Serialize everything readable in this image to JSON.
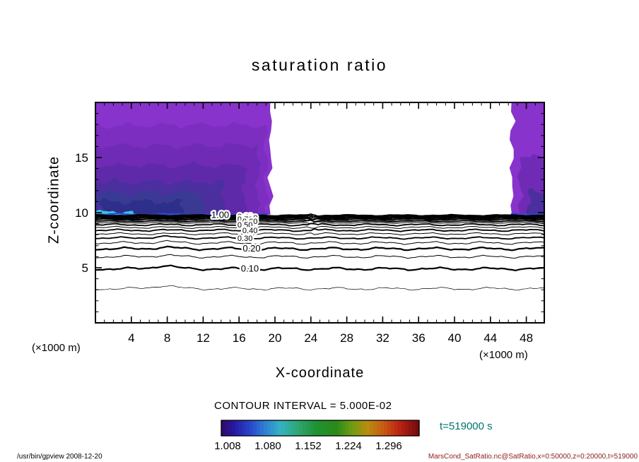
{
  "header": {
    "title": "saturation ratio"
  },
  "axes": {
    "xlabel": "X-coordinate",
    "ylabel": "Z-coordinate",
    "x_unit": "(×1000 m)",
    "z_unit": "(×1000 m)"
  },
  "caption": {
    "contour_interval": "CONTOUR INTERVAL = 5.000E-02",
    "time": "t=519000 s",
    "time_color": "#00736d"
  },
  "footer": {
    "left": "/usr/bin/gpview  2008-12-20",
    "right": "MarsCond_SatRatio.nc@SatRatio,x=0:50000,z=0:20000,t=519000",
    "right_color": "#8b1a1a"
  },
  "chart_data": {
    "type": "contour",
    "title": "saturation ratio",
    "xlabel": "X-coordinate",
    "ylabel": "Z-coordinate",
    "x_unit": "×1000 m",
    "z_unit": "×1000 m",
    "x_range": [
      0,
      50
    ],
    "z_range": [
      0,
      20
    ],
    "x_ticks": [
      4,
      8,
      12,
      16,
      20,
      24,
      28,
      32,
      36,
      40,
      44,
      48
    ],
    "z_ticks": [
      5,
      10,
      15
    ],
    "contour_interval": 0.05,
    "time": "t=519000 s",
    "line_contours": [
      {
        "level": 0.05,
        "z": 3.1,
        "w": 0.7
      },
      {
        "level": 0.1,
        "z": 4.9,
        "w": 2.2
      },
      {
        "level": 0.15,
        "z": 6.0,
        "w": 1.0
      },
      {
        "level": 0.2,
        "z": 6.72,
        "w": 2.2
      },
      {
        "level": 0.25,
        "z": 7.25,
        "w": 1.0
      },
      {
        "level": 0.3,
        "z": 7.7,
        "w": 1.8
      },
      {
        "level": 0.35,
        "z": 8.08,
        "w": 1.0
      },
      {
        "level": 0.4,
        "z": 8.4,
        "w": 1.8
      },
      {
        "level": 0.45,
        "z": 8.66,
        "w": 1.0
      },
      {
        "level": 0.5,
        "z": 8.9,
        "w": 1.8
      },
      {
        "level": 0.55,
        "z": 9.08,
        "w": 1.0
      },
      {
        "level": 0.6,
        "z": 9.22,
        "w": 1.8
      },
      {
        "level": 0.65,
        "z": 9.33,
        "w": 1.0
      },
      {
        "level": 0.7,
        "z": 9.42,
        "w": 1.8
      },
      {
        "level": 0.75,
        "z": 9.5,
        "w": 1.0
      },
      {
        "level": 0.8,
        "z": 9.56,
        "w": 1.8
      },
      {
        "level": 0.85,
        "z": 9.62,
        "w": 1.0
      },
      {
        "level": 0.9,
        "z": 9.68,
        "w": 1.8
      },
      {
        "level": 0.95,
        "z": 9.72,
        "w": 1.0
      },
      {
        "level": 1.0,
        "z": 9.76,
        "w": 1.8
      }
    ],
    "inline_labels": [
      {
        "text": "1.00",
        "level": 1.0,
        "x": 13.9
      },
      {
        "text": "0.20",
        "level": 0.2,
        "x": 17.4
      },
      {
        "text": "0.10",
        "level": 0.1,
        "x": 17.2
      }
    ],
    "stacked_labels": {
      "x": 16.9,
      "levels": [
        0.9,
        0.8,
        0.7,
        0.6,
        0.5,
        0.4,
        0.3
      ]
    },
    "filled_regions": [
      {
        "x0": 0.0,
        "x1": 19.5,
        "z0": 9.78,
        "z1": 20.0,
        "c": "#8833cb"
      },
      {
        "x0": 0.0,
        "x1": 19.0,
        "z0": 9.78,
        "z1": 17.9,
        "c": "#7c2ec1"
      },
      {
        "x0": 0.0,
        "x1": 18.1,
        "z0": 9.78,
        "z1": 16.1,
        "c": "#6f2bb6"
      },
      {
        "x0": 0.0,
        "x1": 16.6,
        "z0": 9.78,
        "z1": 14.3,
        "c": "#5f2aaa"
      },
      {
        "x0": 0.0,
        "x1": 14.3,
        "z0": 9.78,
        "z1": 12.8,
        "c": "#4c2f9f"
      },
      {
        "x0": 0.3,
        "x1": 12.1,
        "z0": 9.8,
        "z1": 11.8,
        "c": "#3a3a95"
      },
      {
        "x0": 0.8,
        "x1": 9.7,
        "z0": 9.8,
        "z1": 11.0,
        "c": "#2e2f8a"
      },
      {
        "x0": 0.0,
        "x1": 4.3,
        "z0": 9.72,
        "z1": 10.1,
        "c": "#3ec2de"
      },
      {
        "x0": 46.4,
        "x1": 50.0,
        "z0": 9.82,
        "z1": 20.0,
        "c": "#8833cb"
      },
      {
        "x0": 47.3,
        "x1": 50.0,
        "z0": 9.82,
        "z1": 15.0,
        "c": "#6f2bb6"
      },
      {
        "x0": 48.2,
        "x1": 50.0,
        "z0": 9.82,
        "z1": 11.9,
        "c": "#4c2f9f"
      }
    ],
    "boundary_lines": [
      {
        "z": 9.84,
        "x0": 0.0,
        "x1": 19.5,
        "c": "#2b49d2",
        "w": 2.2
      },
      {
        "z": 9.86,
        "x0": 46.3,
        "x1": 50.0,
        "c": "#2b49d2",
        "w": 2.2
      }
    ],
    "colorbar": {
      "labels": [
        "1.008",
        "1.080",
        "1.152",
        "1.224",
        "1.296"
      ],
      "steps": 56,
      "stops": [
        {
          "at": 0.0,
          "c": "#2e0a66"
        },
        {
          "at": 0.06,
          "c": "#27179e"
        },
        {
          "at": 0.14,
          "c": "#2743c8"
        },
        {
          "at": 0.22,
          "c": "#2f7fd4"
        },
        {
          "at": 0.3,
          "c": "#35b2c4"
        },
        {
          "at": 0.38,
          "c": "#2fa878"
        },
        {
          "at": 0.48,
          "c": "#1f9232"
        },
        {
          "at": 0.58,
          "c": "#2a8a1a"
        },
        {
          "at": 0.66,
          "c": "#6f9c12"
        },
        {
          "at": 0.74,
          "c": "#b98c10"
        },
        {
          "at": 0.82,
          "c": "#c85a12"
        },
        {
          "at": 0.9,
          "c": "#bb2313"
        },
        {
          "at": 1.0,
          "c": "#6e0b0b"
        }
      ]
    }
  }
}
